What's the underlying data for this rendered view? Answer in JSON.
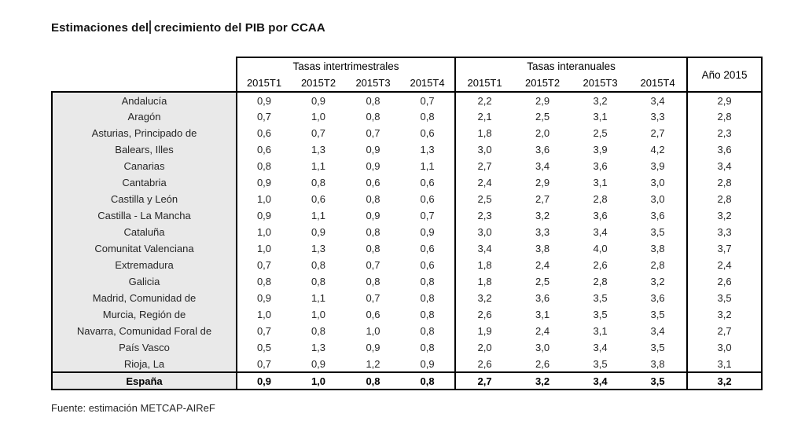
{
  "title": {
    "text_before_cursor": "Estimaciones del",
    "text_after_cursor": " crecimiento del PIB por CCAA"
  },
  "table": {
    "group_headers": [
      "Tasas intertrimestrales",
      "Tasas interanuales"
    ],
    "year_header": "Año 2015",
    "quarter_headers": [
      "2015T1",
      "2015T2",
      "2015T3",
      "2015T4"
    ],
    "rows": [
      {
        "region": "Andalucía",
        "qoq": [
          "0,9",
          "0,9",
          "0,8",
          "0,7"
        ],
        "yoy": [
          "2,2",
          "2,9",
          "3,2",
          "3,4"
        ],
        "year": "2,9"
      },
      {
        "region": "Aragón",
        "qoq": [
          "0,7",
          "1,0",
          "0,8",
          "0,8"
        ],
        "yoy": [
          "2,1",
          "2,5",
          "3,1",
          "3,3"
        ],
        "year": "2,8"
      },
      {
        "region": "Asturias, Principado de",
        "qoq": [
          "0,6",
          "0,7",
          "0,7",
          "0,6"
        ],
        "yoy": [
          "1,8",
          "2,0",
          "2,5",
          "2,7"
        ],
        "year": "2,3"
      },
      {
        "region": "Balears, Illes",
        "qoq": [
          "0,6",
          "1,3",
          "0,9",
          "1,3"
        ],
        "yoy": [
          "3,0",
          "3,6",
          "3,9",
          "4,2"
        ],
        "year": "3,6"
      },
      {
        "region": "Canarias",
        "qoq": [
          "0,8",
          "1,1",
          "0,9",
          "1,1"
        ],
        "yoy": [
          "2,7",
          "3,4",
          "3,6",
          "3,9"
        ],
        "year": "3,4"
      },
      {
        "region": "Cantabria",
        "qoq": [
          "0,9",
          "0,8",
          "0,6",
          "0,6"
        ],
        "yoy": [
          "2,4",
          "2,9",
          "3,1",
          "3,0"
        ],
        "year": "2,8"
      },
      {
        "region": "Castilla y León",
        "qoq": [
          "1,0",
          "0,6",
          "0,8",
          "0,6"
        ],
        "yoy": [
          "2,5",
          "2,7",
          "2,8",
          "3,0"
        ],
        "year": "2,8"
      },
      {
        "region": "Castilla - La Mancha",
        "qoq": [
          "0,9",
          "1,1",
          "0,9",
          "0,7"
        ],
        "yoy": [
          "2,3",
          "3,2",
          "3,6",
          "3,6"
        ],
        "year": "3,2"
      },
      {
        "region": "Cataluña",
        "qoq": [
          "1,0",
          "0,9",
          "0,8",
          "0,9"
        ],
        "yoy": [
          "3,0",
          "3,3",
          "3,4",
          "3,5"
        ],
        "year": "3,3"
      },
      {
        "region": "Comunitat Valenciana",
        "qoq": [
          "1,0",
          "1,3",
          "0,8",
          "0,6"
        ],
        "yoy": [
          "3,4",
          "3,8",
          "4,0",
          "3,8"
        ],
        "year": "3,7"
      },
      {
        "region": "Extremadura",
        "qoq": [
          "0,7",
          "0,8",
          "0,7",
          "0,6"
        ],
        "yoy": [
          "1,8",
          "2,4",
          "2,6",
          "2,8"
        ],
        "year": "2,4"
      },
      {
        "region": "Galicia",
        "qoq": [
          "0,8",
          "0,8",
          "0,8",
          "0,8"
        ],
        "yoy": [
          "1,8",
          "2,5",
          "2,8",
          "3,2"
        ],
        "year": "2,6"
      },
      {
        "region": "Madrid, Comunidad de",
        "qoq": [
          "0,9",
          "1,1",
          "0,7",
          "0,8"
        ],
        "yoy": [
          "3,2",
          "3,6",
          "3,5",
          "3,6"
        ],
        "year": "3,5"
      },
      {
        "region": "Murcia, Región de",
        "qoq": [
          "1,0",
          "1,0",
          "0,6",
          "0,8"
        ],
        "yoy": [
          "2,6",
          "3,1",
          "3,5",
          "3,5"
        ],
        "year": "3,2"
      },
      {
        "region": "Navarra, Comunidad Foral de",
        "qoq": [
          "0,7",
          "0,8",
          "1,0",
          "0,8"
        ],
        "yoy": [
          "1,9",
          "2,4",
          "3,1",
          "3,4"
        ],
        "year": "2,7"
      },
      {
        "region": "País Vasco",
        "qoq": [
          "0,5",
          "1,3",
          "0,9",
          "0,8"
        ],
        "yoy": [
          "2,0",
          "3,0",
          "3,4",
          "3,5"
        ],
        "year": "3,0"
      },
      {
        "region": "Rioja, La",
        "qoq": [
          "0,7",
          "0,9",
          "1,2",
          "0,9"
        ],
        "yoy": [
          "2,6",
          "2,6",
          "3,5",
          "3,8"
        ],
        "year": "3,1"
      }
    ],
    "total_row": {
      "region": "España",
      "qoq": [
        "0,9",
        "1,0",
        "0,8",
        "0,8"
      ],
      "yoy": [
        "2,7",
        "3,2",
        "3,4",
        "3,5"
      ],
      "year": "3,2"
    }
  },
  "footer": {
    "source_note": "Fuente: estimación METCAP-AIReF"
  },
  "colors": {
    "region_column_bg": "#e9e9e9",
    "table_border": "#000000",
    "text": "#262626"
  }
}
